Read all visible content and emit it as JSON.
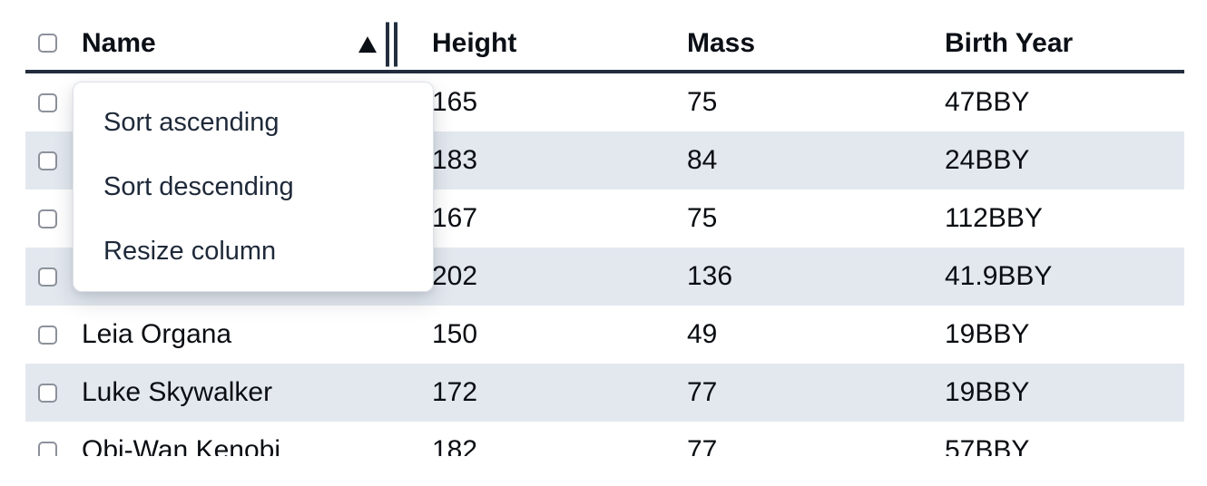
{
  "table": {
    "columns": [
      {
        "label": "Name"
      },
      {
        "label": "Height"
      },
      {
        "label": "Mass"
      },
      {
        "label": "Birth Year"
      }
    ],
    "sort": {
      "column": "Name",
      "direction": "ascending"
    },
    "rows": [
      {
        "name": "",
        "height": "165",
        "mass": "75",
        "birth_year": "47BBY"
      },
      {
        "name": "",
        "height": "183",
        "mass": "84",
        "birth_year": "24BBY"
      },
      {
        "name": "",
        "height": "167",
        "mass": "75",
        "birth_year": "112BBY"
      },
      {
        "name": "",
        "height": "202",
        "mass": "136",
        "birth_year": "41.9BBY"
      },
      {
        "name": "Leia Organa",
        "height": "150",
        "mass": "49",
        "birth_year": "19BBY"
      },
      {
        "name": "Luke Skywalker",
        "height": "172",
        "mass": "77",
        "birth_year": "19BBY"
      },
      {
        "name": "Obi-Wan Kenobi",
        "height": "182",
        "mass": "77",
        "birth_year": "57BBY"
      }
    ]
  },
  "context_menu": {
    "items": [
      {
        "label": "Sort ascending"
      },
      {
        "label": "Sort descending"
      },
      {
        "label": "Resize column"
      }
    ]
  },
  "icons": {
    "sort_indicator": "triangle-up",
    "resize_handle": "double-vertical-bars"
  },
  "colors": {
    "row_stripe": "#e3e8ef",
    "header_border": "#222e3d",
    "menu_text": "#1e2939",
    "cell_text": "#0a0d12",
    "checkbox_border": "#8c929b"
  }
}
